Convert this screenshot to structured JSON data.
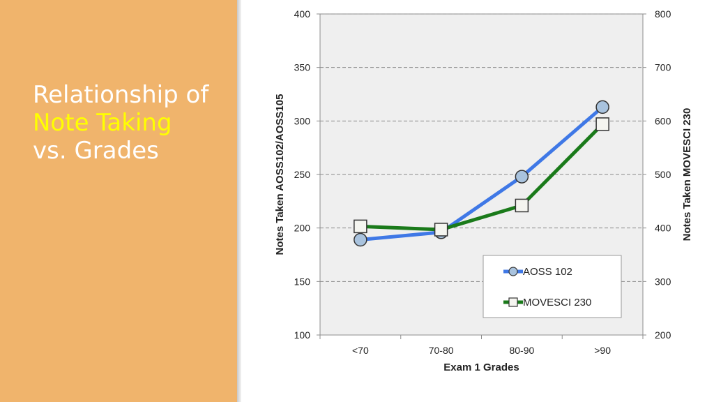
{
  "slide": {
    "title_line1": "Relationship of",
    "title_line2": "Note Taking",
    "title_line3": "vs. Grades"
  },
  "colors": {
    "sidebar": "#f0b46c",
    "title_text": "#ffffff",
    "title_highlight": "#ffff00",
    "plot_area": "#efefef",
    "aoss_line": "#3f78e6",
    "aoss_marker": "#a9c3de",
    "movesci_line": "#1a7a1a",
    "movesci_marker": "#f5f5f0"
  },
  "chart_data": {
    "type": "line",
    "categories": [
      "<70",
      "70-80",
      "80-90",
      ">90"
    ],
    "xlabel": "Exam 1 Grades",
    "ylabel": "Notes Taken AOSS102/AOSS105",
    "y2label": "Notes Taken MOVESCI 230",
    "ylim": [
      100,
      400
    ],
    "y2lim": [
      200,
      800
    ],
    "yticks": [
      100,
      150,
      200,
      250,
      300,
      350,
      400
    ],
    "y2ticks": [
      200,
      300,
      400,
      500,
      600,
      700,
      800
    ],
    "grid": true,
    "legend_position": "bottom-right",
    "series": [
      {
        "name": "AOSS 102",
        "axis": "left",
        "values": [
          189,
          196,
          248,
          313
        ],
        "marker": "circle"
      },
      {
        "name": "MOVESCI 230",
        "axis": "right",
        "values": [
          403,
          397,
          442,
          594
        ],
        "marker": "square"
      }
    ]
  }
}
